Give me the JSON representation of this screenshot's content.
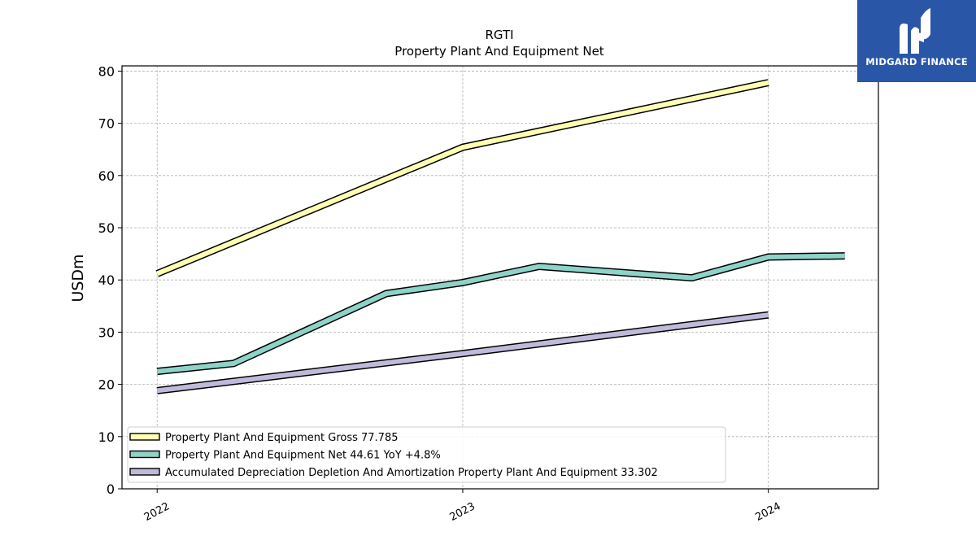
{
  "chart_data": {
    "type": "line",
    "title": "RGTI",
    "subtitle": "Property Plant And Equipment Net",
    "ylabel": "USDm",
    "xlabel": "",
    "ylim": [
      0,
      81
    ],
    "xlim": [
      2021.885,
      2024.36
    ],
    "yticks": [
      0,
      10,
      20,
      30,
      40,
      50,
      60,
      70,
      80
    ],
    "xticks": [
      {
        "value": 2022,
        "label": "2022"
      },
      {
        "value": 2023,
        "label": "2023"
      },
      {
        "value": 2024,
        "label": "2024"
      }
    ],
    "grid": true,
    "legend_position": "lower-left",
    "series": [
      {
        "name": "Property Plant And Equipment Gross",
        "legend_label": "Property Plant And Equipment Gross  77.785",
        "color": "#ffffb3",
        "x": [
          2022,
          2023,
          2024
        ],
        "values": [
          41.2,
          65.4,
          77.785
        ]
      },
      {
        "name": "Property Plant And Equipment Net",
        "legend_label": "Property Plant And Equipment Net  44.61 YoY +4.8%",
        "color": "#8dd3c7",
        "x": [
          2022,
          2022.25,
          2022.75,
          2023,
          2023.25,
          2023.75,
          2024,
          2024.25
        ],
        "values": [
          22.5,
          24.0,
          37.4,
          39.5,
          42.6,
          40.4,
          44.4,
          44.61
        ]
      },
      {
        "name": "Accumulated Depreciation Depletion And Amortization Property Plant And Equipment",
        "legend_label": "Accumulated Depreciation Depletion And Amortization Property Plant And Equipment  33.302",
        "color": "#bebada",
        "x": [
          2022,
          2023,
          2024
        ],
        "values": [
          18.8,
          25.9,
          33.302
        ]
      }
    ]
  },
  "logo": {
    "text": "MIDGARD FINANCE",
    "background": "#2a56a8"
  }
}
